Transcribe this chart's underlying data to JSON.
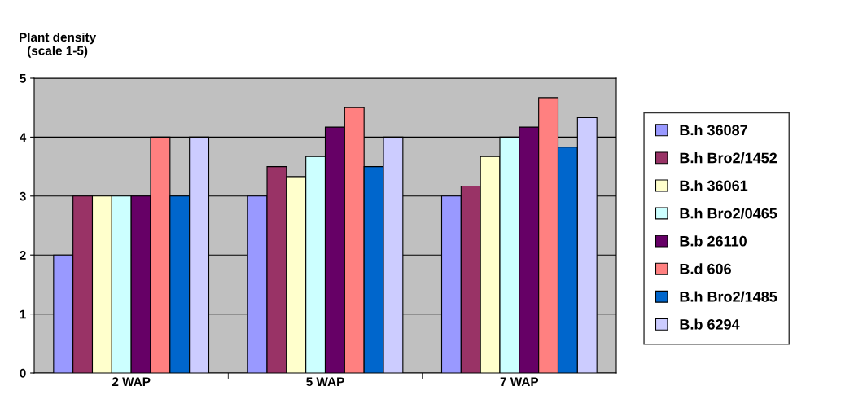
{
  "chart_data": {
    "type": "bar",
    "ylabel": "Plant density\n(scale 1-5)",
    "categories": [
      "2 WAP",
      "5 WAP",
      "7 WAP"
    ],
    "series": [
      {
        "name": "B.h 36087",
        "color": "#9999ff",
        "values": [
          2,
          3,
          3
        ]
      },
      {
        "name": "B.h Bro2/1452",
        "color": "#993366",
        "values": [
          3,
          3.5,
          3.17
        ]
      },
      {
        "name": "B.h 36061",
        "color": "#ffffcc",
        "values": [
          3,
          3.33,
          3.67
        ]
      },
      {
        "name": "B.h Bro2/0465",
        "color": "#ccffff",
        "values": [
          3,
          3.67,
          4
        ]
      },
      {
        "name": "B.b 26110",
        "color": "#660066",
        "values": [
          3,
          4.17,
          4.17
        ]
      },
      {
        "name": "B.d 606",
        "color": "#ff8080",
        "values": [
          4,
          4.5,
          4.67
        ]
      },
      {
        "name": "B.h Bro2/1485",
        "color": "#0066cc",
        "values": [
          3,
          3.5,
          3.83
        ]
      },
      {
        "name": "B.b 6294",
        "color": "#ccccff",
        "values": [
          4,
          4,
          4.33
        ]
      }
    ],
    "ylim": [
      0,
      5
    ],
    "yticks": [
      0,
      1,
      2,
      3,
      4,
      5
    ],
    "grid": "y",
    "legend": "right"
  }
}
